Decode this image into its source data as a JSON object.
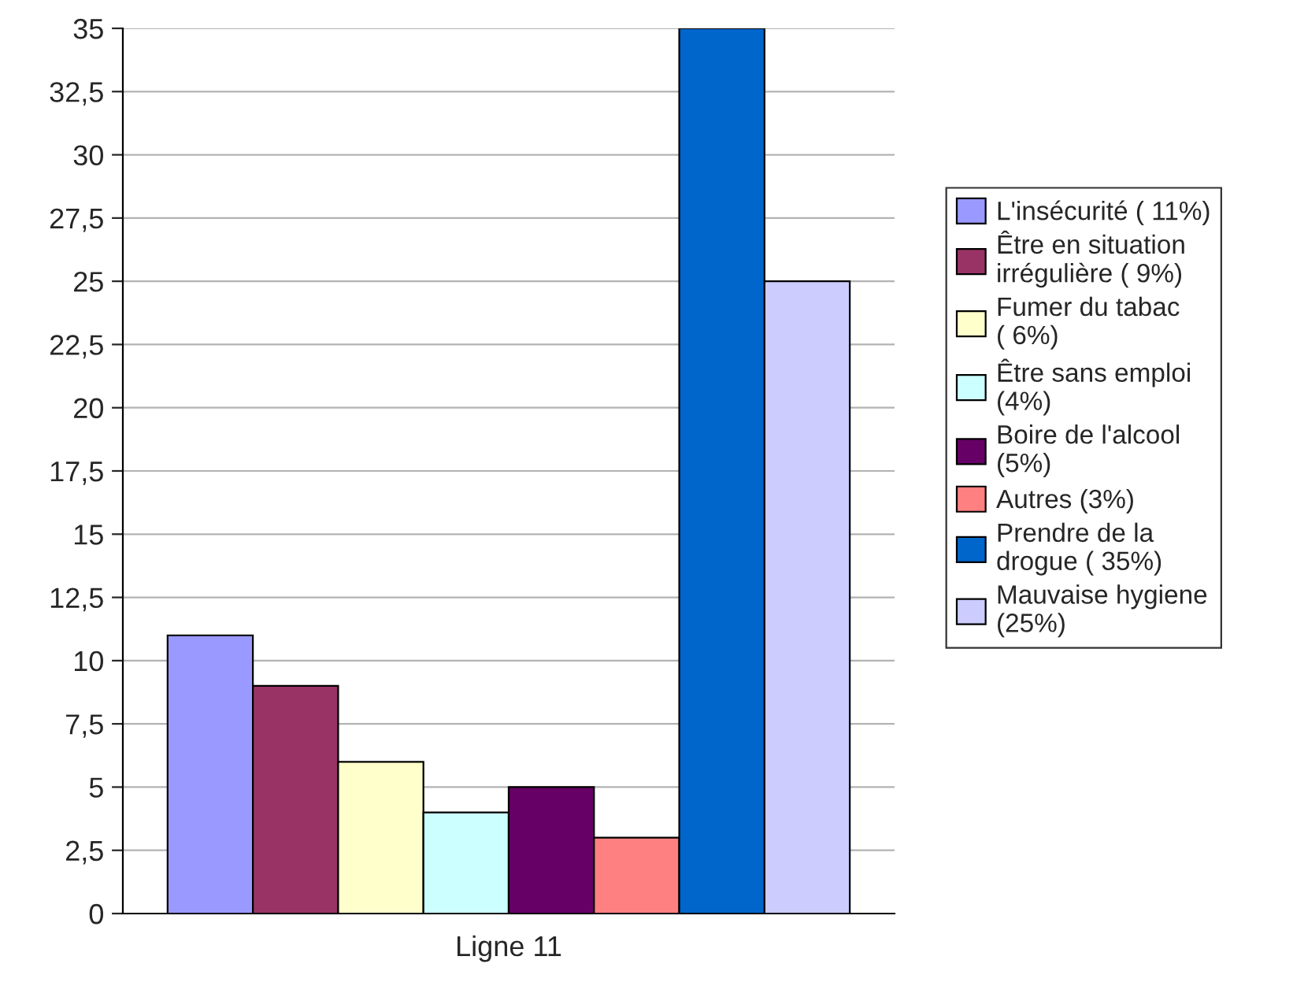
{
  "chart_data": {
    "type": "bar",
    "categories": [
      "Ligne 11"
    ],
    "series": [
      {
        "name": "L'insécurité ( 11%)",
        "color": "#9999ff",
        "values": [
          11
        ]
      },
      {
        "name": "Être en situation irrégulière ( 9%)",
        "color": "#993366",
        "values": [
          9
        ]
      },
      {
        "name": "Fumer du tabac ( 6%)",
        "color": "#ffffcc",
        "values": [
          6
        ]
      },
      {
        "name": "Être sans emploi (4%)",
        "color": "#ccffff",
        "values": [
          4
        ]
      },
      {
        "name": "Boire de l'alcool (5%)",
        "color": "#660066",
        "values": [
          5
        ]
      },
      {
        "name": "Autres (3%)",
        "color": "#ff8080",
        "values": [
          3
        ]
      },
      {
        "name": "Prendre de la drogue ( 35%)",
        "color": "#0066cc",
        "values": [
          35
        ]
      },
      {
        "name": "Mauvaise hygiene (25%)",
        "color": "#ccccff",
        "values": [
          25
        ]
      }
    ],
    "ylim": [
      0,
      35
    ],
    "yticks": [
      0,
      {
        "value": 2.5,
        "label": "2,5"
      },
      5,
      {
        "value": 7.5,
        "label": "7,5"
      },
      10,
      {
        "value": 12.5,
        "label": "12,5"
      },
      15,
      {
        "value": 17.5,
        "label": "17,5"
      },
      20,
      {
        "value": 22.5,
        "label": "22,5"
      },
      25,
      {
        "value": 27.5,
        "label": "27,5"
      },
      30,
      {
        "value": 32.5,
        "label": "32,5"
      },
      35
    ],
    "grid": "y",
    "legend": "right"
  }
}
